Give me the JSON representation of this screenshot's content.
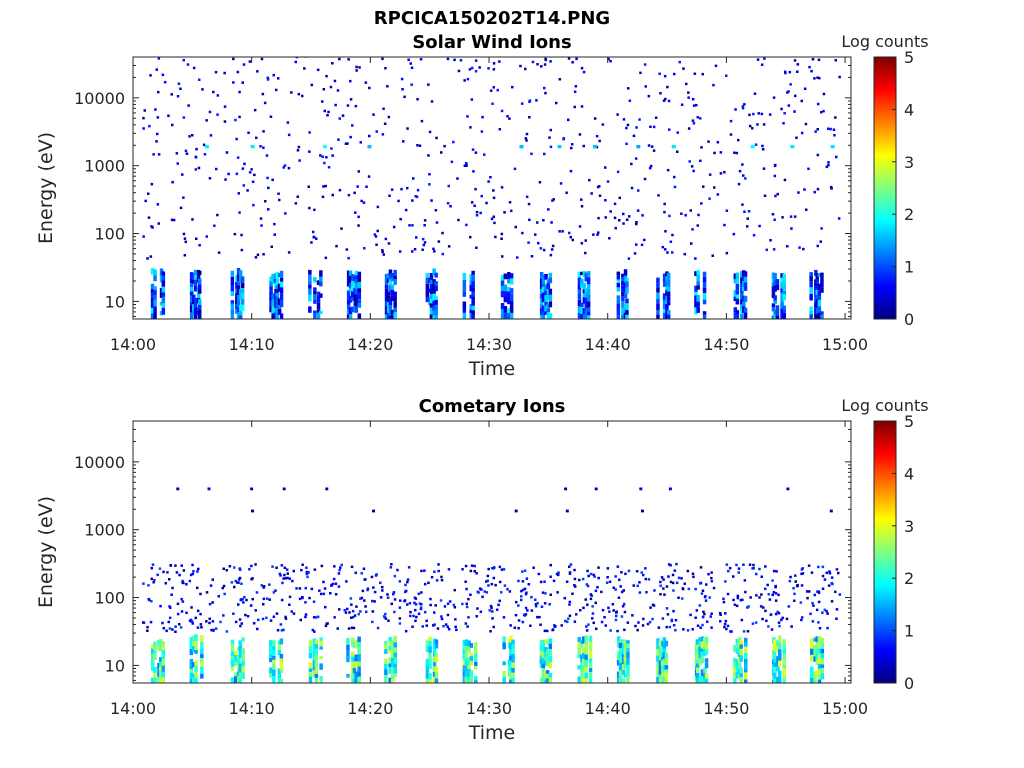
{
  "figure_title": "RPCICA150202T14.PNG",
  "colormap": [
    "#00007f",
    "#0000ff",
    "#007fff",
    "#00ffff",
    "#7fff7f",
    "#ffff00",
    "#ff7f00",
    "#ff0000",
    "#7f0000"
  ],
  "chart_data": [
    {
      "type": "heatmap",
      "title": "Solar Wind Ions",
      "xlabel": "Time",
      "ylabel": "Energy (eV)",
      "x_ticks": [
        "14:00",
        "14:10",
        "14:20",
        "14:30",
        "14:40",
        "14:50",
        "15:00"
      ],
      "x_range_minutes": [
        0,
        60.5
      ],
      "y_scale": "log",
      "y_range": [
        5.5,
        40000
      ],
      "y_ticks": [
        {
          "value": 10,
          "label": "10"
        },
        {
          "value": 100,
          "label": "100"
        },
        {
          "value": 1000,
          "label": "1000"
        },
        {
          "value": 10000,
          "label": "10000"
        }
      ],
      "colorbar": {
        "label": "Log counts",
        "range": [
          0,
          5
        ],
        "ticks": [
          "0",
          "1",
          "2",
          "3",
          "4",
          "5"
        ]
      },
      "sweep_starts_minutes": [
        1.5,
        4.8,
        8.2,
        11.5,
        14.8,
        18.0,
        21.2,
        24.5,
        27.8,
        31.0,
        34.3,
        37.5,
        40.8,
        44.1,
        47.3,
        50.6,
        53.8,
        57.0
      ],
      "low_energy_band": {
        "energy_range": [
          5.5,
          25
        ],
        "log_counts_range": [
          0.1,
          1.9
        ]
      },
      "scatter": {
        "energy_range": [
          40,
          40000
        ],
        "density_per_sweep": 40,
        "log_counts_range": [
          0.1,
          0.8
        ]
      },
      "hot_spots_energy": 1800,
      "hot_spots_log_counts": 2.0
    },
    {
      "type": "heatmap",
      "title": "Cometary Ions",
      "xlabel": "Time",
      "ylabel": "Energy (eV)",
      "x_ticks": [
        "14:00",
        "14:10",
        "14:20",
        "14:30",
        "14:40",
        "14:50",
        "15:00"
      ],
      "x_range_minutes": [
        0,
        60.5
      ],
      "y_scale": "log",
      "y_range": [
        5.5,
        40000
      ],
      "y_ticks": [
        {
          "value": 10,
          "label": "10"
        },
        {
          "value": 100,
          "label": "100"
        },
        {
          "value": 1000,
          "label": "1000"
        },
        {
          "value": 10000,
          "label": "10000"
        }
      ],
      "colorbar": {
        "label": "Log counts",
        "range": [
          0,
          5
        ],
        "ticks": [
          "0",
          "1",
          "2",
          "3",
          "4",
          "5"
        ]
      },
      "sweep_starts_minutes": [
        1.5,
        4.8,
        8.2,
        11.5,
        14.8,
        18.0,
        21.2,
        24.5,
        27.8,
        31.0,
        34.3,
        37.5,
        40.8,
        44.1,
        47.3,
        50.6,
        53.8,
        57.0
      ],
      "low_energy_band": {
        "energy_range": [
          5.5,
          23
        ],
        "log_counts_range": [
          1.2,
          3.0
        ]
      },
      "scatter": {
        "energy_range": [
          30,
          300
        ],
        "density_per_sweep": 45,
        "log_counts_range": [
          0.1,
          1.0
        ]
      },
      "high_energy_points": {
        "energy_values": [
          1800,
          3800
        ],
        "log_counts_range": [
          0.1,
          0.5
        ]
      }
    }
  ]
}
